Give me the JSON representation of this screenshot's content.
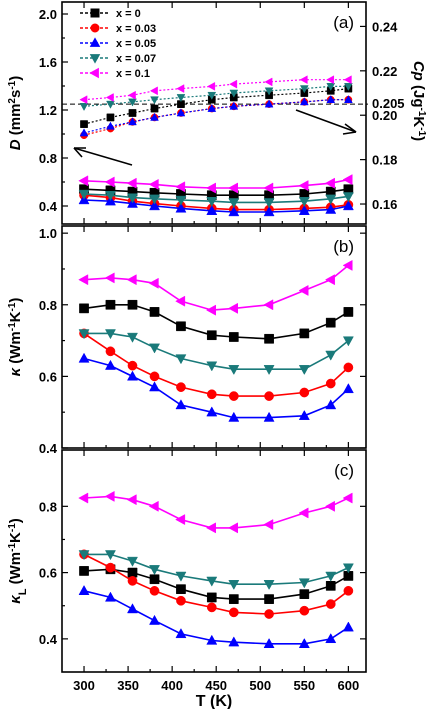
{
  "chart_data": [
    {
      "type": "line",
      "panel_label": "(a)",
      "xlim": [
        275,
        620
      ],
      "ylim": [
        0.25,
        2.1
      ],
      "y2lim": [
        0.151,
        0.251
      ],
      "yticks": [
        0.4,
        0.8,
        1.2,
        1.6,
        2.0
      ],
      "ytick_labels": [
        "0.4",
        "0.8",
        "1.2",
        "1.6",
        "2.0"
      ],
      "y2ticks": [
        0.16,
        0.18,
        0.2,
        0.22,
        0.24
      ],
      "y2tick_labels": [
        "0.16",
        "0.18",
        "0.20",
        "0.22",
        "0.24"
      ],
      "ylabel_parts": [
        "D",
        " (mm",
        "2",
        "s",
        "-1",
        ")"
      ],
      "y2label_parts": [
        "Cp",
        " (Jg",
        "-1",
        "K",
        "-1",
        ")"
      ],
      "ref_line_y2": 0.205,
      "ref_line_label": "0.205",
      "legend_position": "top-left",
      "series_D": [
        {
          "name": "x = 0",
          "color": "#000000",
          "marker": "square",
          "x": [
            300,
            330,
            355,
            380,
            410,
            445,
            470,
            510,
            550,
            580,
            600
          ],
          "y": [
            0.54,
            0.53,
            0.52,
            0.51,
            0.5,
            0.49,
            0.49,
            0.49,
            0.5,
            0.52,
            0.54
          ]
        },
        {
          "name": "x = 0.03",
          "color": "#ff0000",
          "marker": "circle",
          "x": [
            300,
            330,
            355,
            380,
            410,
            445,
            470,
            510,
            550,
            580,
            600
          ],
          "y": [
            0.49,
            0.47,
            0.44,
            0.42,
            0.4,
            0.38,
            0.37,
            0.37,
            0.38,
            0.39,
            0.41
          ]
        },
        {
          "name": "x = 0.05",
          "color": "#0000ff",
          "marker": "triangle-up",
          "x": [
            300,
            330,
            355,
            380,
            410,
            445,
            470,
            510,
            550,
            580,
            600
          ],
          "y": [
            0.45,
            0.44,
            0.42,
            0.4,
            0.38,
            0.36,
            0.35,
            0.35,
            0.36,
            0.37,
            0.4
          ]
        },
        {
          "name": "x = 0.07",
          "color": "#1a7a7a",
          "marker": "triangle-down",
          "x": [
            300,
            330,
            355,
            380,
            410,
            445,
            470,
            510,
            550,
            580,
            600
          ],
          "y": [
            0.5,
            0.49,
            0.47,
            0.46,
            0.45,
            0.44,
            0.43,
            0.43,
            0.44,
            0.46,
            0.48
          ]
        },
        {
          "name": "x = 0.1",
          "color": "#ff00ff",
          "marker": "triangle-left",
          "x": [
            300,
            330,
            355,
            380,
            410,
            445,
            470,
            510,
            550,
            580,
            600
          ],
          "y": [
            0.61,
            0.6,
            0.59,
            0.58,
            0.56,
            0.55,
            0.55,
            0.55,
            0.57,
            0.59,
            0.62
          ]
        }
      ],
      "series_Cp": [
        {
          "name": "x = 0",
          "color": "#000000",
          "marker": "square",
          "x": [
            300,
            330,
            355,
            380,
            410,
            445,
            470,
            510,
            550,
            580,
            600
          ],
          "y": [
            0.196,
            0.199,
            0.201,
            0.203,
            0.205,
            0.207,
            0.208,
            0.209,
            0.21,
            0.211,
            0.212
          ]
        },
        {
          "name": "x = 0.03",
          "color": "#ff0000",
          "marker": "circle",
          "x": [
            300,
            330,
            355,
            380,
            410,
            445,
            470,
            510,
            550,
            580,
            600
          ],
          "y": [
            0.191,
            0.194,
            0.197,
            0.199,
            0.201,
            0.203,
            0.204,
            0.205,
            0.206,
            0.207,
            0.207
          ]
        },
        {
          "name": "x = 0.05",
          "color": "#0000ff",
          "marker": "triangle-up",
          "x": [
            300,
            330,
            355,
            380,
            410,
            445,
            470,
            510,
            550,
            580,
            600
          ],
          "y": [
            0.192,
            0.195,
            0.197,
            0.199,
            0.201,
            0.203,
            0.204,
            0.205,
            0.206,
            0.207,
            0.207
          ]
        },
        {
          "name": "x = 0.07",
          "color": "#1a7a7a",
          "marker": "triangle-down",
          "x": [
            300,
            330,
            355,
            380,
            410,
            445,
            470,
            510,
            550,
            580,
            600
          ],
          "y": [
            0.204,
            0.205,
            0.206,
            0.207,
            0.208,
            0.209,
            0.21,
            0.211,
            0.212,
            0.213,
            0.213
          ]
        },
        {
          "name": "x = 0.1",
          "color": "#ff00ff",
          "marker": "triangle-left",
          "x": [
            300,
            330,
            355,
            380,
            410,
            445,
            470,
            510,
            550,
            580,
            600
          ],
          "y": [
            0.207,
            0.208,
            0.209,
            0.211,
            0.212,
            0.213,
            0.214,
            0.215,
            0.216,
            0.216,
            0.216
          ]
        }
      ]
    },
    {
      "type": "line",
      "panel_label": "(b)",
      "xlim": [
        275,
        620
      ],
      "ylim": [
        0.4,
        1.02
      ],
      "yticks": [
        0.4,
        0.6,
        0.8,
        1.0
      ],
      "ytick_labels": [
        "0.4",
        "0.6",
        "0.8",
        "1.0"
      ],
      "ylabel_parts": [
        "κ",
        " (Wm",
        "-1",
        "K",
        "-1",
        ")"
      ],
      "series": [
        {
          "name": "x = 0",
          "color": "#000000",
          "marker": "square",
          "x": [
            300,
            330,
            355,
            380,
            410,
            445,
            470,
            510,
            550,
            580,
            600
          ],
          "y": [
            0.79,
            0.8,
            0.8,
            0.78,
            0.74,
            0.715,
            0.71,
            0.705,
            0.72,
            0.75,
            0.78
          ]
        },
        {
          "name": "x = 0.03",
          "color": "#ff0000",
          "marker": "circle",
          "x": [
            300,
            330,
            355,
            380,
            410,
            445,
            470,
            510,
            550,
            580,
            600
          ],
          "y": [
            0.72,
            0.67,
            0.63,
            0.6,
            0.57,
            0.55,
            0.545,
            0.545,
            0.555,
            0.58,
            0.625
          ]
        },
        {
          "name": "x = 0.05",
          "color": "#0000ff",
          "marker": "triangle-up",
          "x": [
            300,
            330,
            355,
            380,
            410,
            445,
            470,
            510,
            550,
            580,
            600
          ],
          "y": [
            0.65,
            0.63,
            0.6,
            0.57,
            0.52,
            0.5,
            0.485,
            0.485,
            0.49,
            0.52,
            0.565
          ]
        },
        {
          "name": "x = 0.07",
          "color": "#1a7a7a",
          "marker": "triangle-down",
          "x": [
            300,
            330,
            355,
            380,
            410,
            445,
            470,
            510,
            550,
            580,
            600
          ],
          "y": [
            0.72,
            0.72,
            0.71,
            0.68,
            0.65,
            0.63,
            0.62,
            0.62,
            0.62,
            0.66,
            0.7
          ]
        },
        {
          "name": "x = 0.1",
          "color": "#ff00ff",
          "marker": "triangle-left",
          "x": [
            300,
            330,
            355,
            380,
            410,
            445,
            470,
            510,
            550,
            580,
            600
          ],
          "y": [
            0.87,
            0.875,
            0.87,
            0.86,
            0.81,
            0.785,
            0.79,
            0.8,
            0.84,
            0.87,
            0.91
          ]
        }
      ]
    },
    {
      "type": "line",
      "panel_label": "(c)",
      "xlim": [
        275,
        620
      ],
      "ylim": [
        0.3,
        0.97
      ],
      "yticks": [
        0.4,
        0.6,
        0.8
      ],
      "ytick_labels": [
        "0.4",
        "0.6",
        "0.8"
      ],
      "ylabel_parts": [
        "κ",
        "L",
        " (Wm",
        "-1",
        "K",
        "-1",
        ")"
      ],
      "xticks": [
        300,
        350,
        400,
        450,
        500,
        550,
        600
      ],
      "xtick_labels": [
        "300",
        "350",
        "400",
        "450",
        "500",
        "550",
        "600"
      ],
      "xlabel": "T (K)",
      "series": [
        {
          "name": "x = 0",
          "color": "#000000",
          "marker": "square",
          "x": [
            300,
            330,
            355,
            380,
            410,
            445,
            470,
            510,
            550,
            580,
            600
          ],
          "y": [
            0.605,
            0.61,
            0.6,
            0.58,
            0.55,
            0.525,
            0.52,
            0.52,
            0.535,
            0.56,
            0.59
          ]
        },
        {
          "name": "x = 0.03",
          "color": "#ff0000",
          "marker": "circle",
          "x": [
            300,
            330,
            355,
            380,
            410,
            445,
            470,
            510,
            550,
            580,
            600
          ],
          "y": [
            0.655,
            0.615,
            0.575,
            0.545,
            0.515,
            0.495,
            0.48,
            0.475,
            0.485,
            0.505,
            0.545
          ]
        },
        {
          "name": "x = 0.05",
          "color": "#0000ff",
          "marker": "triangle-up",
          "x": [
            300,
            330,
            355,
            380,
            410,
            445,
            470,
            510,
            550,
            580,
            600
          ],
          "y": [
            0.545,
            0.525,
            0.49,
            0.455,
            0.415,
            0.395,
            0.39,
            0.385,
            0.385,
            0.4,
            0.435
          ]
        },
        {
          "name": "x = 0.07",
          "color": "#1a7a7a",
          "marker": "triangle-down",
          "x": [
            300,
            330,
            355,
            380,
            410,
            445,
            470,
            510,
            550,
            580,
            600
          ],
          "y": [
            0.655,
            0.655,
            0.635,
            0.61,
            0.59,
            0.575,
            0.565,
            0.565,
            0.57,
            0.59,
            0.615
          ]
        },
        {
          "name": "x = 0.1",
          "color": "#ff00ff",
          "marker": "triangle-left",
          "x": [
            300,
            330,
            355,
            380,
            410,
            445,
            470,
            510,
            550,
            580,
            600
          ],
          "y": [
            0.825,
            0.83,
            0.82,
            0.8,
            0.76,
            0.735,
            0.735,
            0.745,
            0.78,
            0.8,
            0.825
          ]
        }
      ]
    }
  ]
}
